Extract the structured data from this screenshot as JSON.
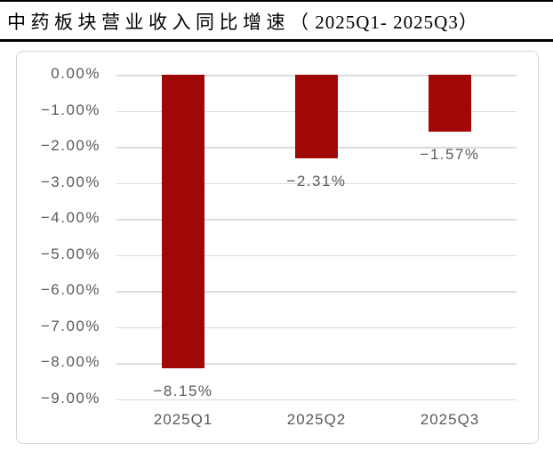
{
  "header": {
    "title_main": "中药板块营业收入同比增速",
    "title_range": "（ 2025Q1- 2025Q3）"
  },
  "chart_data": {
    "type": "bar",
    "title": "中药板块营业收入同比增速（2025Q1-2025Q3）",
    "categories": [
      "2025Q1",
      "2025Q2",
      "2025Q3"
    ],
    "values": [
      -8.15,
      -2.31,
      -1.57
    ],
    "data_labels": [
      "−8.15%",
      "−2.31%",
      "−1.57%"
    ],
    "yticks": [
      "0.00%",
      "−1.00%",
      "−2.00%",
      "−3.00%",
      "−4.00%",
      "−5.00%",
      "−6.00%",
      "−7.00%",
      "−8.00%",
      "−9.00%"
    ],
    "ylim": [
      -9,
      0
    ],
    "xlabel": "",
    "ylabel": "",
    "grid": true,
    "legend_position": "none",
    "bar_color": "#a00808",
    "axis_text_color": "#595959",
    "gridline_color": "#dbdbdb"
  }
}
